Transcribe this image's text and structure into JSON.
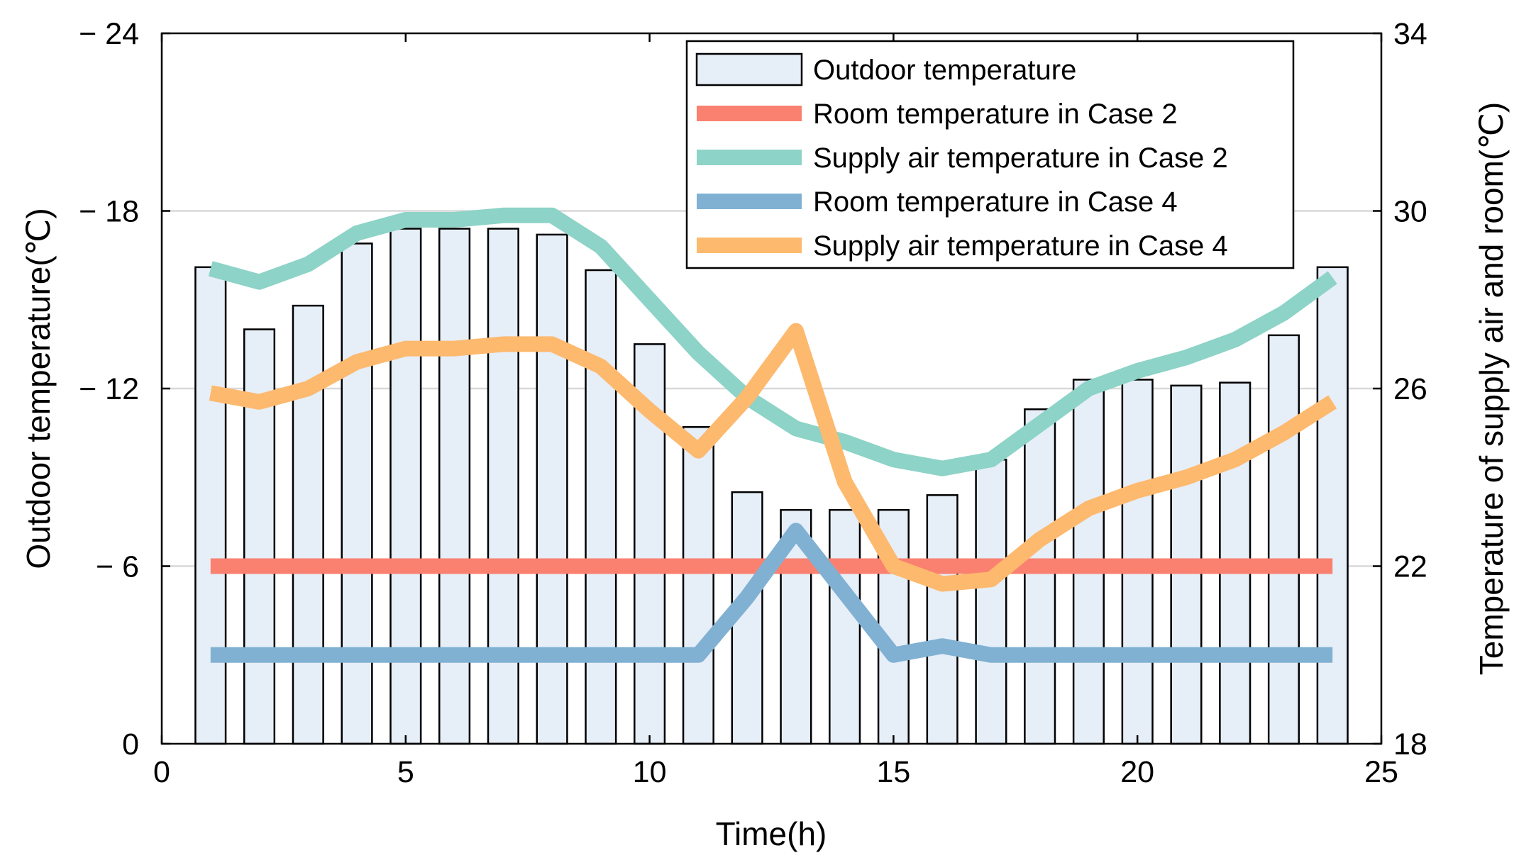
{
  "chart_data": {
    "type": "bar+line",
    "title": "",
    "xlabel": "Time(h)",
    "ylabel_left": "Outdoor temperature(℃)",
    "ylabel_right": "Temperature of supply air and room(℃)",
    "xlim": [
      0,
      25
    ],
    "ylim_left": [
      0,
      24
    ],
    "ylim_right": [
      18,
      34
    ],
    "x_ticks": [
      "0",
      "5",
      "10",
      "15",
      "20",
      "25"
    ],
    "y_left_ticks": [
      "0",
      "− 6",
      "− 12",
      "− 18",
      "− 24"
    ],
    "y_right_ticks": [
      "18",
      "22",
      "26",
      "30",
      "34"
    ],
    "grid": "horizontal",
    "legend_position": "top-right",
    "x": [
      1,
      2,
      3,
      4,
      5,
      6,
      7,
      8,
      9,
      10,
      11,
      12,
      13,
      14,
      15,
      16,
      17,
      18,
      19,
      20,
      21,
      22,
      23,
      24
    ],
    "bars": {
      "name": "Outdoor temperature",
      "axis": "left",
      "color": "#E6EEF8",
      "values": [
        16.1,
        14.0,
        14.8,
        16.9,
        17.4,
        17.4,
        17.4,
        17.2,
        16.0,
        13.5,
        10.7,
        8.5,
        7.9,
        7.9,
        7.9,
        8.4,
        9.6,
        11.3,
        12.3,
        12.3,
        12.1,
        12.2,
        13.8,
        16.1
      ]
    },
    "series": [
      {
        "name": "Room temperature in Case 2",
        "axis": "right",
        "color": "#FA8070",
        "values": [
          22,
          22,
          22,
          22,
          22,
          22,
          22,
          22,
          22,
          22,
          22,
          22,
          22,
          22,
          22,
          22,
          22,
          22,
          22,
          22,
          22,
          22,
          22,
          22
        ]
      },
      {
        "name": "Supply air temperature in Case 2",
        "axis": "right",
        "color": "#8DD3C7",
        "values": [
          28.7,
          28.4,
          28.8,
          29.5,
          29.8,
          29.8,
          29.9,
          29.9,
          29.2,
          28.0,
          26.8,
          25.8,
          25.1,
          24.8,
          24.4,
          24.2,
          24.4,
          25.2,
          26.0,
          26.4,
          26.7,
          27.1,
          27.7,
          28.5
        ]
      },
      {
        "name": "Room temperature in Case 4",
        "axis": "right",
        "color": "#80B1D3",
        "values": [
          20,
          20,
          20,
          20,
          20,
          20,
          20,
          20,
          20,
          20,
          20,
          21.3,
          22.8,
          21.4,
          20,
          20.2,
          20,
          20,
          20,
          20,
          20,
          20,
          20,
          20
        ]
      },
      {
        "name": "Supply air temperature in Case 4",
        "axis": "right",
        "color": "#FDB96E",
        "values": [
          25.9,
          25.7,
          26.0,
          26.6,
          26.9,
          26.9,
          27.0,
          27.0,
          26.5,
          25.5,
          24.6,
          25.8,
          27.3,
          23.9,
          22.0,
          21.6,
          21.7,
          22.6,
          23.3,
          23.7,
          24.0,
          24.4,
          25.0,
          25.7
        ]
      }
    ]
  }
}
